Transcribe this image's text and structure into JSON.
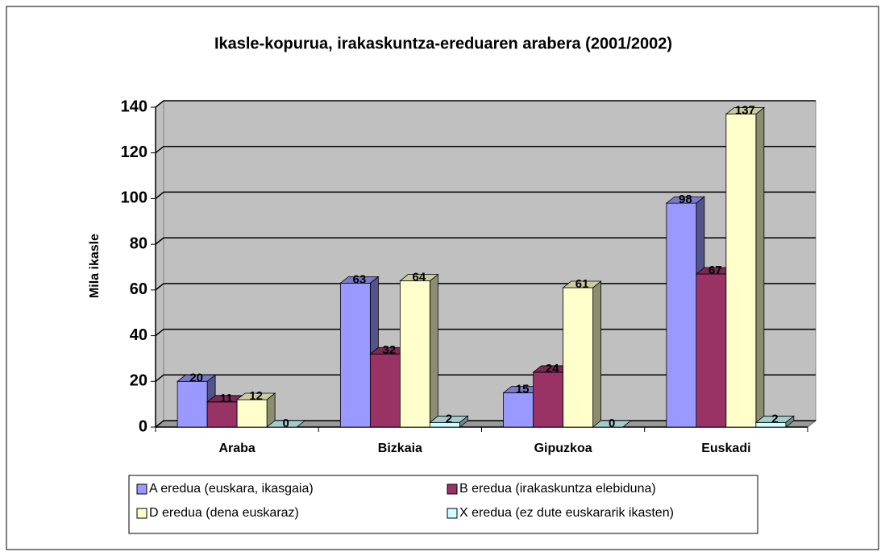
{
  "chart_data": {
    "type": "bar3d",
    "title": "Ikasle-kopurua, irakaskuntza-ereduaren arabera (2001/2002)",
    "y_label": "Mila ikasle",
    "categories": [
      "Araba",
      "Bizkaia",
      "Gipuzkoa",
      "Euskadi"
    ],
    "series": [
      {
        "name": "A eredua (euskara, ikasgaia)",
        "color": "#9999ff",
        "values": [
          20,
          63,
          15,
          98
        ]
      },
      {
        "name": "B eredua (irakaskuntza elebiduna)",
        "color": "#993366",
        "values": [
          11,
          32,
          24,
          67
        ]
      },
      {
        "name": "D eredua (dena euskaraz)",
        "color": "#ffffcc",
        "values": [
          12,
          64,
          61,
          137
        ]
      },
      {
        "name": "X eredua (ez dute euskararik ikasten)",
        "color": "#ccffff",
        "values": [
          0,
          2,
          0,
          2
        ]
      }
    ],
    "ylim": [
      0,
      140
    ],
    "yticks": [
      0,
      20,
      40,
      60,
      80,
      100,
      120,
      140
    ],
    "grid": true
  }
}
